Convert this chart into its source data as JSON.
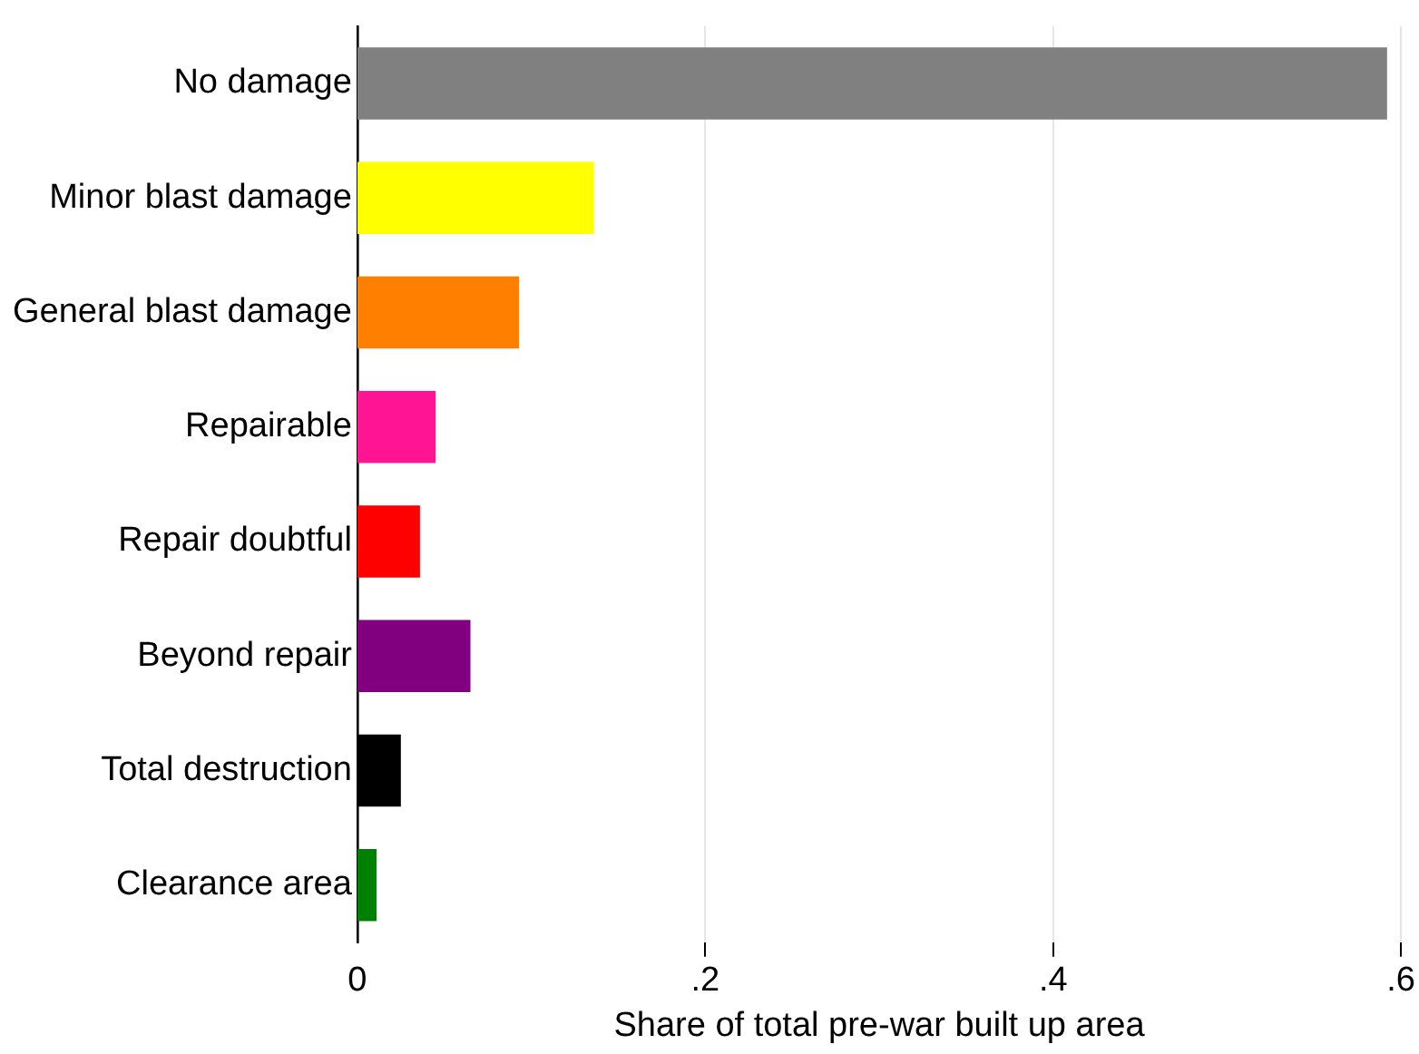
{
  "chart_data": {
    "type": "bar",
    "orientation": "horizontal",
    "xlabel": "Share of total pre-war built up area",
    "categories": [
      "No damage",
      "Minor blast damage",
      "General blast damage",
      "Repairable",
      "Repair doubtful",
      "Beyond repair",
      "Total destruction",
      "Clearance area"
    ],
    "values": [
      0.592,
      0.136,
      0.093,
      0.045,
      0.036,
      0.065,
      0.025,
      0.011
    ],
    "colors": [
      "#808080",
      "#ffff00",
      "#ff8000",
      "#ff1493",
      "#ff0000",
      "#800080",
      "#000000",
      "#008000"
    ],
    "xlim": [
      0,
      0.6
    ],
    "xticks": [
      0,
      {
        "value": 0.2,
        "label": ".2"
      },
      {
        "value": 0.4,
        "label": ".4"
      },
      {
        "value": 0.6,
        "label": ".6"
      }
    ],
    "grid": "x",
    "legend": false
  }
}
